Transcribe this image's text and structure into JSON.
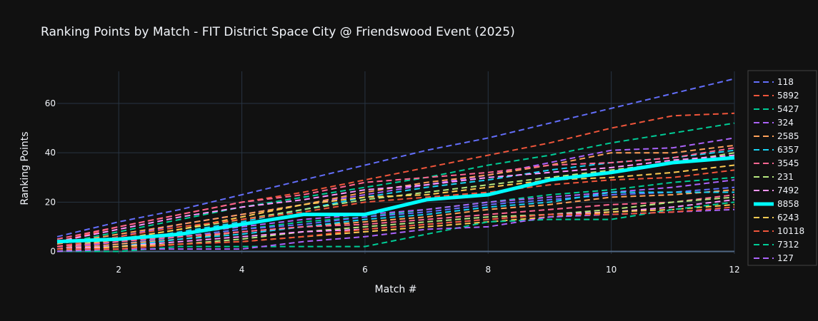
{
  "chart_data": {
    "type": "line",
    "title": "Ranking Points by Match - FIT District Space City @ Friendswood Event (2025)",
    "xlabel": "Match #",
    "ylabel": "Ranking Points",
    "xlim": [
      1,
      12
    ],
    "ylim": [
      -1,
      73
    ],
    "xticks": [
      2,
      4,
      6,
      8,
      10,
      12
    ],
    "yticks": [
      0,
      20,
      40,
      60
    ],
    "grid": true,
    "legend_position": "right",
    "x": [
      1,
      2,
      3,
      4,
      5,
      6,
      7,
      8,
      9,
      10,
      11,
      12
    ],
    "series": [
      {
        "name": "118",
        "color": "#636efa",
        "dash": true,
        "values": [
          6,
          12,
          17,
          23,
          29,
          35,
          41,
          46,
          52,
          58,
          64,
          70
        ]
      },
      {
        "name": "5892",
        "color": "#EF553B",
        "dash": true,
        "values": [
          4,
          10,
          15,
          20,
          24,
          29,
          34,
          39,
          44,
          50,
          55,
          56
        ]
      },
      {
        "name": "5427",
        "color": "#00cc96",
        "dash": true,
        "values": [
          3,
          8,
          13,
          18,
          22,
          26,
          30,
          35,
          39,
          44,
          48,
          52
        ]
      },
      {
        "name": "324",
        "color": "#ab63fa",
        "dash": true,
        "values": [
          2,
          6,
          11,
          15,
          19,
          23,
          27,
          31,
          36,
          41,
          42,
          46
        ]
      },
      {
        "name": "2585",
        "color": "#FFA15A",
        "dash": true,
        "values": [
          3,
          7,
          11,
          15,
          19,
          24,
          28,
          31,
          35,
          40,
          40,
          43
        ]
      },
      {
        "name": "6357",
        "color": "#19d3f3",
        "dash": true,
        "values": [
          1,
          4,
          8,
          12,
          17,
          22,
          26,
          29,
          33,
          36,
          38,
          41
        ]
      },
      {
        "name": "3545",
        "color": "#FF6692",
        "dash": true,
        "values": [
          5,
          10,
          15,
          20,
          23,
          28,
          30,
          32,
          35,
          36,
          38,
          42
        ]
      },
      {
        "name": "231",
        "color": "#B6E880",
        "dash": true,
        "values": [
          2,
          5,
          9,
          13,
          17,
          21,
          24,
          27,
          30,
          33,
          36,
          40
        ]
      },
      {
        "name": "7492",
        "color": "#FF97FF",
        "dash": true,
        "values": [
          4,
          9,
          14,
          18,
          21,
          25,
          27,
          30,
          32,
          34,
          37,
          39
        ]
      },
      {
        "name": "8858",
        "color": "#00FFFF",
        "dash": false,
        "values": [
          4,
          5,
          7,
          11,
          15,
          15,
          21,
          23,
          29,
          32,
          36,
          38
        ]
      },
      {
        "name": "6243",
        "color": "#FECB52",
        "dash": true,
        "values": [
          1,
          5,
          9,
          14,
          19,
          22,
          23,
          26,
          29,
          30,
          32,
          35
        ]
      },
      {
        "name": "10118",
        "color": "#EF553B",
        "dash": true,
        "values": [
          2,
          6,
          10,
          13,
          16,
          20,
          22,
          24,
          27,
          29,
          30,
          33
        ]
      },
      {
        "name": "7312",
        "color": "#00cc96",
        "dash": true,
        "values": [
          0,
          3,
          6,
          9,
          12,
          14,
          17,
          20,
          23,
          25,
          28,
          30
        ]
      },
      {
        "name": "127",
        "color": "#ab63fa",
        "dash": true,
        "values": [
          1,
          4,
          7,
          10,
          13,
          15,
          17,
          20,
          22,
          24,
          26,
          29
        ]
      },
      {
        "name": "",
        "color": "#636efa",
        "dash": true,
        "values": [
          0,
          3,
          6,
          9,
          11,
          14,
          16,
          19,
          21,
          23,
          24,
          26
        ]
      },
      {
        "name": "",
        "color": "#FFA15A",
        "dash": true,
        "values": [
          1,
          3,
          5,
          8,
          10,
          12,
          14,
          17,
          19,
          22,
          23,
          25
        ]
      },
      {
        "name": "",
        "color": "#19d3f3",
        "dash": true,
        "values": [
          0,
          2,
          5,
          7,
          10,
          13,
          15,
          18,
          20,
          24,
          24,
          24
        ]
      },
      {
        "name": "",
        "color": "#FF6692",
        "dash": true,
        "values": [
          2,
          4,
          6,
          8,
          10,
          11,
          13,
          15,
          17,
          19,
          20,
          23
        ]
      },
      {
        "name": "",
        "color": "#B6E880",
        "dash": true,
        "values": [
          0,
          1,
          3,
          5,
          8,
          10,
          12,
          14,
          15,
          17,
          20,
          22
        ]
      },
      {
        "name": "",
        "color": "#FF97FF",
        "dash": true,
        "values": [
          1,
          2,
          4,
          6,
          8,
          9,
          11,
          13,
          15,
          16,
          18,
          21
        ]
      },
      {
        "name": "",
        "color": "#FECB52",
        "dash": true,
        "values": [
          0,
          2,
          3,
          4,
          6,
          8,
          10,
          12,
          14,
          16,
          17,
          19
        ]
      },
      {
        "name": "",
        "color": "#00cc96",
        "dash": true,
        "values": [
          0,
          0,
          2,
          2,
          2,
          2,
          7,
          12,
          13,
          13,
          17,
          20
        ]
      },
      {
        "name": "",
        "color": "#ab63fa",
        "dash": true,
        "values": [
          0,
          1,
          1,
          1,
          4,
          6,
          9,
          10,
          14,
          15,
          16,
          17
        ]
      },
      {
        "name": "",
        "color": "#EF553B",
        "dash": true,
        "values": [
          1,
          1,
          3,
          4,
          6,
          9,
          11,
          13,
          15,
          15,
          16,
          18
        ]
      }
    ]
  }
}
